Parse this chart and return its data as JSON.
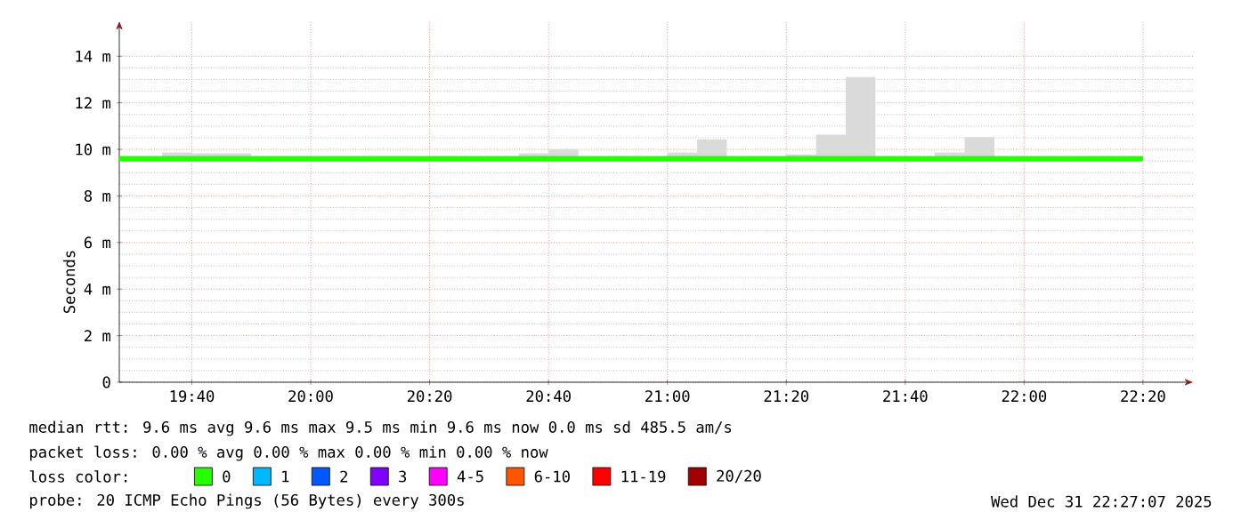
{
  "chart_data": {
    "type": "step",
    "ylabel": "Seconds",
    "legend_title": "loss color:",
    "x": [
      19.4633,
      19.5833,
      19.6667,
      19.75,
      19.8333,
      19.9167,
      20,
      20.0833,
      20.1667,
      20.25,
      20.3333,
      20.4167,
      20.5,
      20.5833,
      20.6667,
      20.75,
      20.8333,
      20.9167,
      21,
      21.0833,
      21.1667,
      21.25,
      21.3333,
      21.4167,
      21.5,
      21.5833,
      21.6667,
      21.75,
      21.8333,
      21.9167,
      22,
      22.0833,
      22.1667,
      22.25,
      22.3333
    ],
    "series": [
      {
        "name": "0",
        "color": "#26ff00",
        "values": [
          9.6,
          9.6,
          9.6,
          9.6,
          9.6,
          9.6,
          9.6,
          9.6,
          9.6,
          9.6,
          9.6,
          9.6,
          9.6,
          9.6,
          9.6,
          9.6,
          9.6,
          9.6,
          9.6,
          9.6,
          9.6,
          9.6,
          9.6,
          9.6,
          9.6,
          9.6,
          9.6,
          9.6,
          9.6,
          9.6,
          9.6,
          9.6,
          9.6,
          9.6,
          9.6
        ],
        "lower": [
          9.5,
          9.5,
          9.5,
          9.5,
          9.5,
          9.5,
          9.5,
          9.5,
          9.5,
          9.5,
          9.5,
          9.5,
          9.5,
          9.5,
          9.5,
          9.5,
          9.5,
          9.5,
          9.5,
          9.5,
          9.5,
          9.5,
          9.5,
          9.5,
          9.5,
          9.5,
          9.5,
          9.5,
          9.5,
          9.5,
          9.5,
          9.5,
          9.5,
          9.5,
          9.5
        ],
        "upper": [
          9.7,
          9.87,
          9.83,
          9.83,
          9.7,
          9.7,
          9.7,
          9.65,
          9.65,
          9.65,
          9.65,
          9.65,
          9.6,
          9.83,
          10.0,
          9.7,
          9.7,
          9.65,
          9.87,
          10.43,
          9.65,
          9.7,
          9.78,
          10.63,
          13.1,
          9.65,
          9.65,
          9.87,
          10.53,
          9.65,
          9.65,
          9.65,
          9.65,
          9.7,
          9.7
        ]
      },
      {
        "name": "1",
        "color": "#00b8ff",
        "values": [
          null,
          null,
          null,
          null,
          null,
          null,
          null,
          null,
          null,
          null,
          null,
          null,
          null,
          null,
          null,
          null,
          null,
          null,
          null,
          null,
          null,
          null,
          null,
          null,
          null,
          null,
          null,
          null,
          null,
          null,
          null,
          null,
          null,
          null,
          null
        ]
      },
      {
        "name": "2",
        "color": "#0059ff",
        "values": [
          null,
          null,
          null,
          null,
          null,
          null,
          null,
          null,
          null,
          null,
          null,
          null,
          null,
          null,
          null,
          null,
          null,
          null,
          null,
          null,
          null,
          null,
          null,
          null,
          null,
          null,
          null,
          null,
          null,
          null,
          null,
          null,
          null,
          null,
          null
        ]
      },
      {
        "name": "3",
        "color": "#7f00ff",
        "values": [
          null,
          null,
          null,
          null,
          null,
          null,
          null,
          null,
          null,
          null,
          null,
          null,
          null,
          null,
          null,
          null,
          null,
          null,
          null,
          null,
          null,
          null,
          null,
          null,
          null,
          null,
          null,
          null,
          null,
          null,
          null,
          null,
          null,
          null,
          null
        ]
      },
      {
        "name": "4-5",
        "color": "#ff00ff",
        "values": [
          null,
          null,
          null,
          null,
          null,
          null,
          null,
          null,
          null,
          null,
          null,
          null,
          null,
          null,
          null,
          null,
          null,
          null,
          null,
          null,
          null,
          null,
          null,
          null,
          null,
          null,
          null,
          null,
          null,
          null,
          null,
          null,
          null,
          null,
          null
        ]
      },
      {
        "name": "6-10",
        "color": "#ff5500",
        "values": [
          null,
          null,
          null,
          null,
          null,
          null,
          null,
          null,
          null,
          null,
          null,
          null,
          null,
          null,
          null,
          null,
          null,
          null,
          null,
          null,
          null,
          null,
          null,
          null,
          null,
          null,
          null,
          null,
          null,
          null,
          null,
          null,
          null,
          null,
          null
        ]
      },
      {
        "name": "11-19",
        "color": "#ff0000",
        "values": [
          null,
          null,
          null,
          null,
          null,
          null,
          null,
          null,
          null,
          null,
          null,
          null,
          null,
          null,
          null,
          null,
          null,
          null,
          null,
          null,
          null,
          null,
          null,
          null,
          null,
          null,
          null,
          null,
          null,
          null,
          null,
          null,
          null,
          null,
          null
        ]
      },
      {
        "name": "20/20",
        "color": "#a00000",
        "values": [
          null,
          null,
          null,
          null,
          null,
          null,
          null,
          null,
          null,
          null,
          null,
          null,
          null,
          null,
          null,
          null,
          null,
          null,
          null,
          null,
          null,
          null,
          null,
          null,
          null,
          null,
          null,
          null,
          null,
          null,
          null,
          null,
          null,
          null,
          null
        ]
      }
    ],
    "xlim": [
      19.4633,
      22.4733
    ],
    "xticks": [
      {
        "value": 19.6667,
        "label": "19:40"
      },
      {
        "value": 20,
        "label": "20:00"
      },
      {
        "value": 20.3333,
        "label": "20:20"
      },
      {
        "value": 20.6667,
        "label": "20:40"
      },
      {
        "value": 21,
        "label": "21:00"
      },
      {
        "value": 21.3333,
        "label": "21:20"
      },
      {
        "value": 21.6667,
        "label": "21:40"
      },
      {
        "value": 22,
        "label": "22:00"
      },
      {
        "value": 22.3333,
        "label": "22:20"
      }
    ],
    "ylim": [
      0,
      15.5
    ],
    "yticks": [
      0,
      {
        "value": 2,
        "label": "2 m"
      },
      {
        "value": 4,
        "label": "4 m"
      },
      {
        "value": 6,
        "label": "6 m"
      },
      {
        "value": 8,
        "label": "8 m"
      },
      {
        "value": 10,
        "label": "10 m"
      },
      {
        "value": 12,
        "label": "12 m"
      },
      {
        "value": 14,
        "label": "14 m"
      }
    ],
    "grid": true,
    "legend": "bottom",
    "annotations": [
      "median rtt:  9.6 ms avg  9.6 ms max  9.5 ms min  9.6 ms now  0.0 ms sd  485.5   am/s",
      "packet loss: 0.00 % avg  0.00 % max  0.00 % min  0.00 % now",
      "probe:       20 ICMP Echo Pings (56 Bytes) every 300s",
      "Wed Dec 31 22:27:07 2025"
    ]
  }
}
